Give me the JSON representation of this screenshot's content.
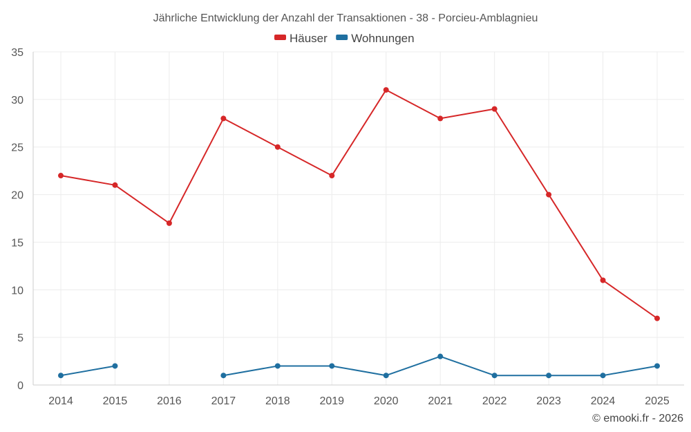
{
  "chart_data": {
    "type": "line",
    "title": "Jährliche Entwicklung der Anzahl der Transaktionen - 38 - Porcieu-Amblagnieu",
    "x": [
      "2014",
      "2015",
      "2016",
      "2017",
      "2018",
      "2019",
      "2020",
      "2021",
      "2022",
      "2023",
      "2024",
      "2025"
    ],
    "series": [
      {
        "name": "Häuser",
        "color": "#d62728",
        "values": [
          22,
          21,
          17,
          28,
          25,
          22,
          31,
          28,
          29,
          20,
          11,
          7
        ]
      },
      {
        "name": "Wohnungen",
        "color": "#1f6fa0",
        "values": [
          1,
          2,
          null,
          1,
          2,
          2,
          1,
          3,
          1,
          1,
          1,
          2
        ]
      }
    ],
    "ylim": [
      0,
      35
    ],
    "yticks": [
      0,
      5,
      10,
      15,
      20,
      25,
      30,
      35
    ],
    "grid": true,
    "legend_position": "top-center",
    "credit": "© emooki.fr - 2026"
  }
}
